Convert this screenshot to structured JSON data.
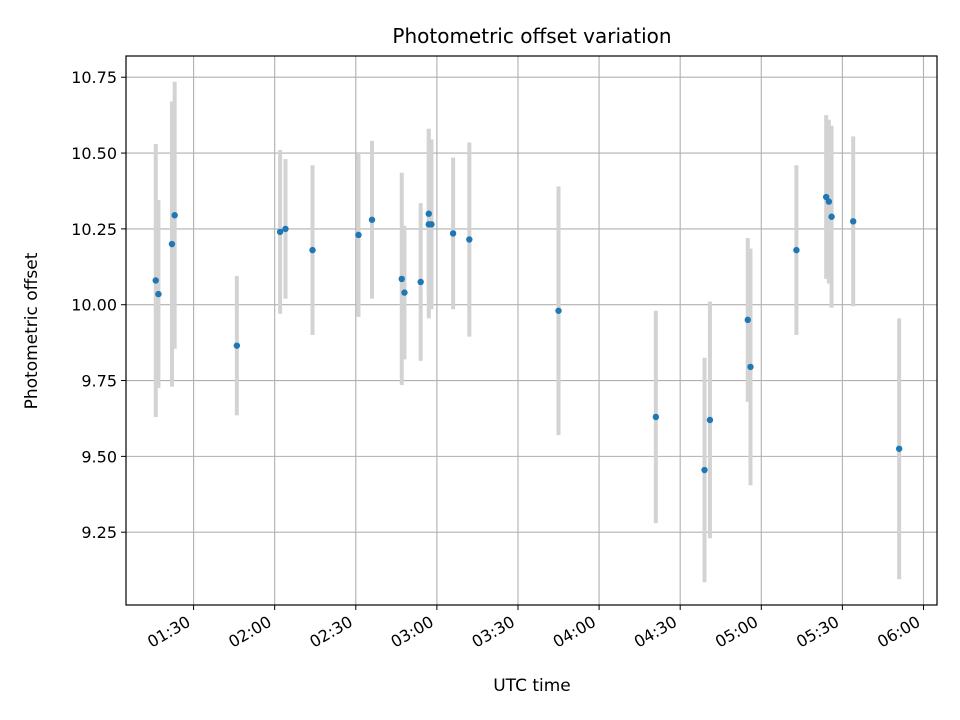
{
  "chart_data": {
    "type": "scatter",
    "title": "Photometric offset variation",
    "xlabel": "UTC time",
    "ylabel": "Photometric offset",
    "grid": true,
    "x_ticks": [
      "01:30",
      "02:00",
      "02:30",
      "03:00",
      "03:30",
      "04:00",
      "04:30",
      "05:00",
      "05:30",
      "06:00"
    ],
    "y_ticks": [
      "9.25",
      "9.50",
      "9.75",
      "10.00",
      "10.25",
      "10.50",
      "10.75"
    ],
    "xlim": [
      "01:05",
      "06:05"
    ],
    "ylim": [
      9.01,
      10.82
    ],
    "point_color": "#1f77b4",
    "errorbar_color": "#d3d3d3",
    "points": [
      {
        "x": "01:16",
        "y": 10.08,
        "err": 0.45
      },
      {
        "x": "01:17",
        "y": 10.035,
        "err": 0.31
      },
      {
        "x": "01:22",
        "y": 10.2,
        "err": 0.47
      },
      {
        "x": "01:23",
        "y": 10.295,
        "err": 0.44
      },
      {
        "x": "01:46",
        "y": 9.865,
        "err": 0.23
      },
      {
        "x": "02:02",
        "y": 10.24,
        "err": 0.27
      },
      {
        "x": "02:04",
        "y": 10.25,
        "err": 0.23
      },
      {
        "x": "02:14",
        "y": 10.18,
        "err": 0.28
      },
      {
        "x": "02:31",
        "y": 10.23,
        "err": 0.27
      },
      {
        "x": "02:36",
        "y": 10.28,
        "err": 0.26
      },
      {
        "x": "02:47",
        "y": 10.085,
        "err": 0.35
      },
      {
        "x": "02:48",
        "y": 10.04,
        "err": 0.22
      },
      {
        "x": "02:54",
        "y": 10.075,
        "err": 0.26
      },
      {
        "x": "02:57",
        "y": 10.265,
        "err": 0.31
      },
      {
        "x": "02:57",
        "y": 10.3,
        "err": 0.28
      },
      {
        "x": "02:58",
        "y": 10.265,
        "err": 0.28
      },
      {
        "x": "03:06",
        "y": 10.235,
        "err": 0.25
      },
      {
        "x": "03:12",
        "y": 10.215,
        "err": 0.32
      },
      {
        "x": "03:45",
        "y": 9.98,
        "err": 0.41
      },
      {
        "x": "04:21",
        "y": 9.63,
        "err": 0.35
      },
      {
        "x": "04:39",
        "y": 9.455,
        "err": 0.37
      },
      {
        "x": "04:41",
        "y": 9.62,
        "err": 0.39
      },
      {
        "x": "04:55",
        "y": 9.95,
        "err": 0.27
      },
      {
        "x": "04:56",
        "y": 9.795,
        "err": 0.39
      },
      {
        "x": "05:13",
        "y": 10.18,
        "err": 0.28
      },
      {
        "x": "05:24",
        "y": 10.355,
        "err": 0.27
      },
      {
        "x": "05:25",
        "y": 10.34,
        "err": 0.27
      },
      {
        "x": "05:26",
        "y": 10.29,
        "err": 0.3
      },
      {
        "x": "05:34",
        "y": 10.275,
        "err": 0.28
      },
      {
        "x": "05:51",
        "y": 9.525,
        "err": 0.43
      }
    ]
  }
}
